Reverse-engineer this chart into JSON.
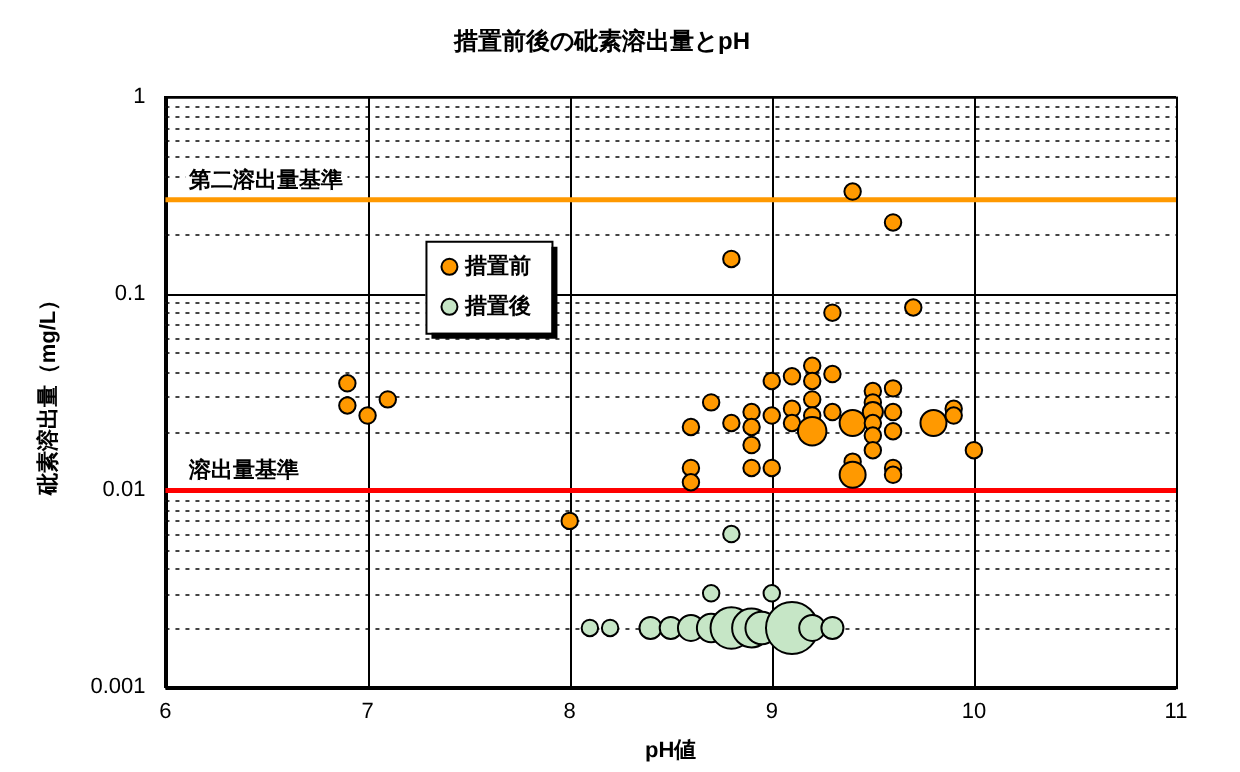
{
  "chart_data": {
    "type": "bubble",
    "title": "措置前後の砒素溶出量とpH",
    "xlabel": "pH値",
    "ylabel": "砒素溶出量（mg/L）",
    "xlim": [
      6,
      11
    ],
    "xticks": [
      6,
      7,
      8,
      9,
      10,
      11
    ],
    "ylim": [
      0.001,
      1
    ],
    "yticks": [
      0.001,
      {
        "value": 0.002,
        "label": null
      },
      {
        "value": 0.003,
        "label": null
      },
      {
        "value": 0.004,
        "label": null
      },
      {
        "value": 0.005,
        "label": null
      },
      {
        "value": 0.006,
        "label": null
      },
      {
        "value": 0.007,
        "label": null
      },
      {
        "value": 0.008,
        "label": null
      },
      {
        "value": 0.009,
        "label": null
      },
      0.01,
      {
        "value": 0.02,
        "label": null
      },
      {
        "value": 0.03,
        "label": null
      },
      {
        "value": 0.04,
        "label": null
      },
      {
        "value": 0.05,
        "label": null
      },
      {
        "value": 0.06,
        "label": null
      },
      {
        "value": 0.07,
        "label": null
      },
      {
        "value": 0.08,
        "label": null
      },
      {
        "value": 0.09,
        "label": null
      },
      0.1,
      {
        "value": 0.2,
        "label": null
      },
      {
        "value": 0.3,
        "label": null
      },
      {
        "value": 0.4,
        "label": null
      },
      {
        "value": 0.5,
        "label": null
      },
      {
        "value": 0.6,
        "label": null
      },
      {
        "value": 0.7,
        "label": null
      },
      {
        "value": 0.8,
        "label": null
      },
      {
        "value": 0.9,
        "label": null
      },
      1
    ],
    "log": "y",
    "grid": true,
    "legend": "top left",
    "marker": "circle",
    "ref_lines": [
      {
        "axis": "y",
        "value": 0.3,
        "label": "第二溶出量基準",
        "color": "#ff9900"
      },
      {
        "axis": "y",
        "value": 0.01,
        "label": "溶出量基準",
        "color": "#ff0000"
      }
    ],
    "series": [
      {
        "name": "措置前",
        "color": "#ff9900",
        "x": [
          6.9,
          6.9,
          7.0,
          7.1,
          8.0,
          8.6,
          8.6,
          8.6,
          9.4,
          9.6,
          8.8,
          9.3,
          9.7,
          8.7,
          8.8,
          8.9,
          8.9,
          8.9,
          8.9,
          9.0,
          9.0,
          9.0,
          9.1,
          9.1,
          9.1,
          9.2,
          9.2,
          9.2,
          9.2,
          9.2,
          9.3,
          9.3,
          9.4,
          9.4,
          9.4,
          9.5,
          9.5,
          9.5,
          9.5,
          9.5,
          9.5,
          9.6,
          9.6,
          9.6,
          9.6,
          9.6,
          9.8,
          9.9,
          9.9,
          10.0
        ],
        "values": [
          0.035,
          0.027,
          0.024,
          0.029,
          0.007,
          0.021,
          0.013,
          0.011,
          0.33,
          0.23,
          0.15,
          0.08,
          0.085,
          0.028,
          0.022,
          0.025,
          0.021,
          0.017,
          0.013,
          0.036,
          0.024,
          0.013,
          0.038,
          0.026,
          0.022,
          0.043,
          0.036,
          0.029,
          0.024,
          0.02,
          0.039,
          0.025,
          0.022,
          0.014,
          0.012,
          0.032,
          0.028,
          0.025,
          0.022,
          0.019,
          0.016,
          0.033,
          0.025,
          0.02,
          0.013,
          0.012,
          0.022,
          0.026,
          0.024,
          0.016
        ],
        "sizes": [
          0.1,
          0.1,
          0.1,
          0.1,
          0.1,
          0.1,
          0.1,
          0.1,
          0.1,
          0.1,
          0.1,
          0.1,
          0.1,
          0.1,
          0.1,
          0.1,
          0.1,
          0.1,
          0.1,
          0.1,
          0.1,
          0.1,
          0.1,
          0.1,
          0.1,
          0.1,
          0.1,
          0.1,
          0.1,
          0.3,
          0.1,
          0.1,
          0.25,
          0.1,
          0.25,
          0.1,
          0.1,
          0.15,
          0.1,
          0.1,
          0.1,
          0.1,
          0.1,
          0.1,
          0.1,
          0.1,
          0.25,
          0.1,
          0.1,
          0.1
        ]
      },
      {
        "name": "措置後",
        "color": "#c6e6c6",
        "x": [
          8.8,
          8.7,
          9.0,
          8.1,
          8.2,
          8.4,
          8.5,
          8.6,
          8.7,
          8.8,
          8.9,
          8.95,
          9.1,
          9.2,
          9.3
        ],
        "values": [
          0.006,
          0.003,
          0.003,
          0.002,
          0.002,
          0.002,
          0.002,
          0.002,
          0.002,
          0.002,
          0.002,
          0.002,
          0.002,
          0.002,
          0.002
        ],
        "sizes": [
          0.1,
          0.1,
          0.1,
          0.1,
          0.1,
          0.18,
          0.18,
          0.25,
          0.3,
          0.64,
          0.56,
          0.39,
          1,
          0.25,
          0.18
        ]
      }
    ]
  }
}
